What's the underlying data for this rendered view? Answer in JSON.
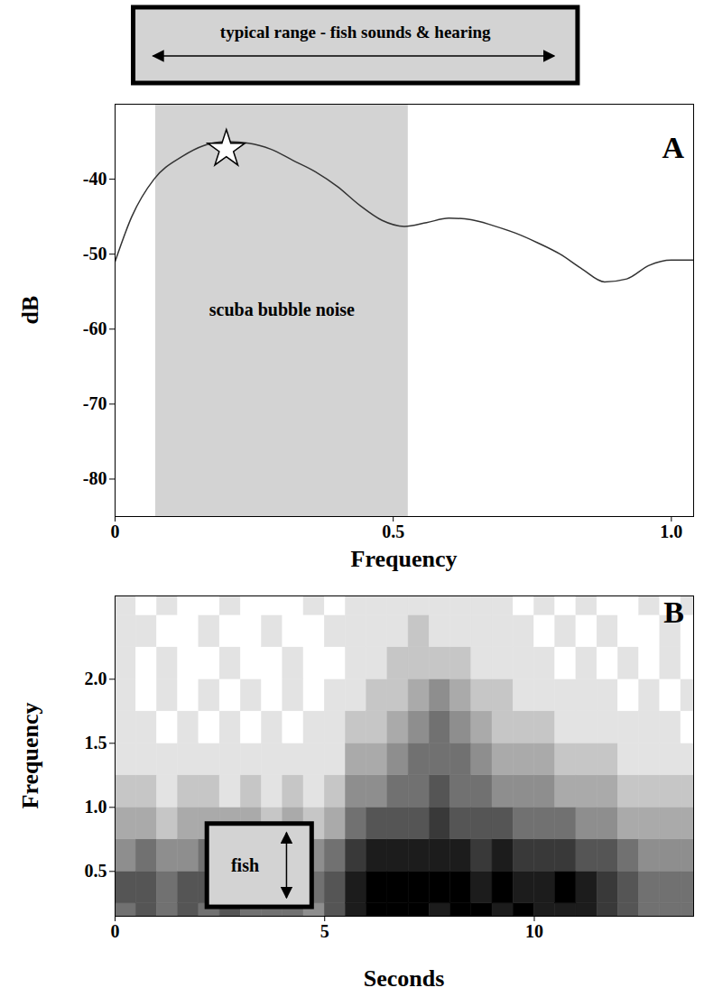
{
  "chart_data": [
    {
      "panel": "A",
      "type": "line",
      "x_label": "Frequency",
      "y_label": "dB",
      "x": [
        0,
        0.03,
        0.07,
        0.12,
        0.16,
        0.2,
        0.24,
        0.28,
        0.32,
        0.36,
        0.4,
        0.44,
        0.48,
        0.52,
        0.56,
        0.6,
        0.64,
        0.68,
        0.72,
        0.76,
        0.8,
        0.84,
        0.88,
        0.92,
        0.96,
        1.0,
        1.04
      ],
      "values": [
        -51,
        -45,
        -40,
        -37,
        -35.5,
        -35,
        -35.2,
        -36,
        -37.5,
        -39,
        -41,
        -43.5,
        -45.5,
        -46.3,
        -45.8,
        -45.2,
        -45.4,
        -46.2,
        -47.2,
        -48.5,
        -50,
        -52,
        -53.7,
        -53.3,
        -51.5,
        -50.8,
        -50.8
      ],
      "color": "#333333",
      "xlim": [
        0,
        1.04
      ],
      "ylim": [
        -85,
        -30
      ],
      "xticks": [
        0,
        0.5,
        {
          "value": 1,
          "label": "1.0"
        }
      ],
      "yticks": [
        -80,
        -70,
        -60,
        -50,
        -40
      ],
      "shaded_region": {
        "x0": 0.073,
        "x1": 0.527,
        "label": "scuba bubble noise",
        "color": "#d3d3d3"
      },
      "marker_point": {
        "x": 0.2,
        "y": -36,
        "marker": "star"
      },
      "range_annotation": {
        "text": "typical range - fish sounds & hearing",
        "x0": 0.069,
        "x1": 0.79
      }
    },
    {
      "panel": "B",
      "type": "heatmap",
      "x_label": "Seconds",
      "y_label": "Frequency",
      "time_bins": [
        0,
        0.5,
        1,
        1.5,
        2,
        2.5,
        3,
        3.5,
        4,
        4.5,
        5,
        5.5,
        6,
        6.5,
        7,
        7.5,
        8,
        8.5,
        9,
        9.5,
        10,
        10.5,
        11,
        11.5,
        12,
        12.5,
        13,
        13.5,
        14
      ],
      "frequency_bins": [
        0,
        0.25,
        0.5,
        0.75,
        1,
        1.25,
        1.5,
        1.75,
        2,
        2.25,
        2.5,
        2.75
      ],
      "cells": [
        [
          5,
          6,
          5,
          6,
          5,
          6,
          5,
          5,
          5,
          4,
          6,
          8,
          9,
          9,
          9,
          8,
          9,
          9,
          8,
          9,
          8,
          8,
          8,
          7,
          6,
          5,
          5,
          5
        ],
        [
          6,
          6,
          5,
          6,
          6,
          5,
          6,
          5,
          5,
          5,
          6,
          8,
          9,
          9,
          9,
          9,
          9,
          8,
          9,
          8,
          8,
          9,
          8,
          7,
          6,
          5,
          5,
          5
        ],
        [
          4,
          5,
          4,
          4,
          5,
          4,
          5,
          4,
          4,
          4,
          5,
          7,
          8,
          8,
          8,
          8,
          8,
          7,
          8,
          7,
          7,
          7,
          6,
          6,
          5,
          4,
          4,
          4
        ],
        [
          3,
          3,
          2,
          3,
          3,
          3,
          3,
          2,
          3,
          2,
          3,
          5,
          6,
          6,
          6,
          7,
          6,
          6,
          6,
          5,
          5,
          5,
          4,
          4,
          3,
          3,
          3,
          3
        ],
        [
          2,
          2,
          1,
          2,
          2,
          1,
          2,
          1,
          2,
          1,
          2,
          4,
          4,
          5,
          5,
          6,
          5,
          5,
          4,
          4,
          4,
          3,
          3,
          3,
          2,
          2,
          2,
          2
        ],
        [
          1,
          1,
          1,
          1,
          1,
          1,
          1,
          1,
          1,
          1,
          1,
          3,
          3,
          4,
          5,
          5,
          5,
          4,
          3,
          3,
          3,
          2,
          2,
          2,
          1,
          1,
          1,
          1
        ],
        [
          1,
          1,
          0,
          1,
          0,
          1,
          0,
          1,
          0,
          1,
          1,
          2,
          2,
          3,
          4,
          5,
          4,
          3,
          2,
          2,
          2,
          1,
          1,
          1,
          1,
          1,
          1,
          0
        ],
        [
          1,
          0,
          1,
          0,
          1,
          0,
          1,
          0,
          1,
          0,
          1,
          1,
          2,
          2,
          3,
          4,
          3,
          2,
          2,
          1,
          1,
          1,
          1,
          1,
          0,
          1,
          0,
          1
        ],
        [
          1,
          0,
          1,
          0,
          0,
          1,
          0,
          0,
          1,
          0,
          0,
          1,
          1,
          2,
          2,
          2,
          2,
          1,
          1,
          1,
          1,
          0,
          1,
          0,
          1,
          0,
          1,
          0
        ],
        [
          1,
          1,
          0,
          0,
          1,
          0,
          0,
          1,
          0,
          0,
          1,
          1,
          1,
          1,
          2,
          1,
          1,
          1,
          1,
          1,
          0,
          1,
          0,
          1,
          0,
          0,
          1,
          0
        ],
        [
          1,
          0,
          1,
          0,
          0,
          1,
          0,
          0,
          0,
          1,
          0,
          1,
          1,
          1,
          1,
          1,
          1,
          1,
          1,
          0,
          1,
          0,
          1,
          0,
          0,
          1,
          0,
          1
        ]
      ],
      "color_range": [
        0,
        9
      ],
      "xlim": [
        0,
        13.8
      ],
      "ylim": [
        0.15,
        2.65
      ],
      "xticks": [
        0,
        5,
        10
      ],
      "yticks": [
        0.5,
        {
          "value": 1,
          "label": "1.0"
        },
        1.5,
        {
          "value": 2,
          "label": "2.0"
        }
      ],
      "annotation": {
        "text": "fish",
        "x0": 2.2,
        "x1": 4.7,
        "y0": 0.22,
        "y1": 0.87
      }
    }
  ]
}
